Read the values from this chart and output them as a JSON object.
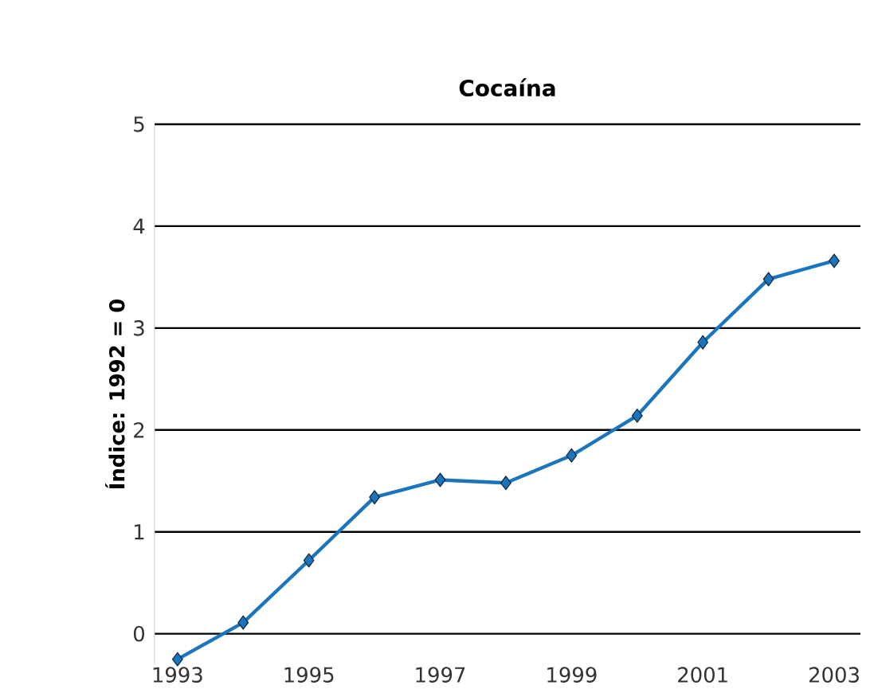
{
  "chart_data": {
    "type": "line",
    "title": "Cocaína",
    "ylabel": "Índice: 1992 = 0",
    "x": [
      1993,
      1994,
      1995,
      1996,
      1997,
      1998,
      1999,
      2000,
      2001,
      2002,
      2003
    ],
    "series": [
      {
        "color": "#1a75bc",
        "values": [
          -0.25,
          0.11,
          0.72,
          1.34,
          1.51,
          1.48,
          1.75,
          2.14,
          2.86,
          3.48,
          3.66
        ]
      }
    ],
    "xlim": [
      1992.65,
      2003.4
    ],
    "ylim": [
      -0.3,
      5
    ],
    "xticks": [
      1993,
      1995,
      1997,
      1999,
      2001,
      2003
    ],
    "yticks": [
      0,
      1,
      2,
      3,
      4,
      5
    ],
    "grid": "y",
    "marker": "diamond",
    "line_style": "solid"
  }
}
